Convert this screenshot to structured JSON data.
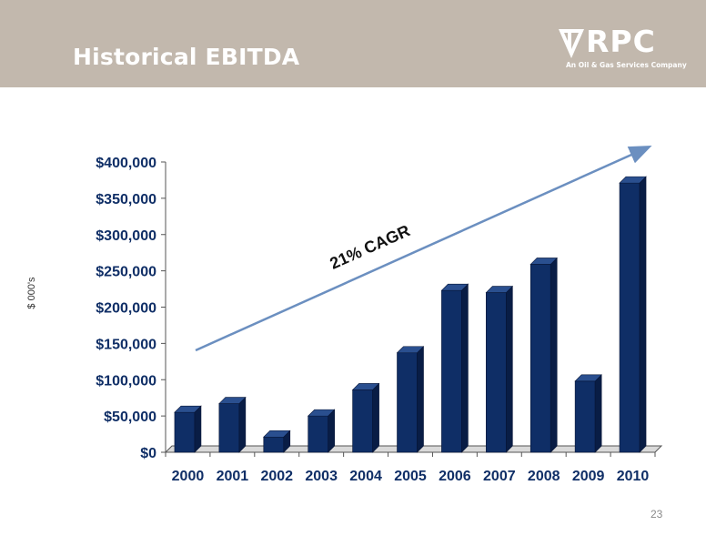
{
  "slide": {
    "title": "Historical EBITDA",
    "page_number": "23",
    "logo": {
      "word": "RPC",
      "tagline": "An Oil & Gas Services Company"
    }
  },
  "colors": {
    "header": "#c2b8ad",
    "bar": "#0f2e66",
    "bar_side": "#091d45",
    "bar_top": "#2a4f8f",
    "arrow": "#6b8fc0"
  },
  "chart_data": {
    "type": "bar",
    "title": "",
    "xlabel": "",
    "ylabel": "$ 000's",
    "categories": [
      "2000",
      "2001",
      "2002",
      "2003",
      "2004",
      "2005",
      "2006",
      "2007",
      "2008",
      "2009",
      "2010"
    ],
    "values": [
      55000,
      67000,
      21000,
      50000,
      86000,
      137000,
      223000,
      220000,
      259000,
      98000,
      371000
    ],
    "ylim": [
      0,
      400000
    ],
    "yticks": [
      "$0",
      "$50,000",
      "$100,000",
      "$150,000",
      "$200,000",
      "$250,000",
      "$300,000",
      "$350,000",
      "$400,000"
    ],
    "ytick_values": [
      0,
      50000,
      100000,
      150000,
      200000,
      250000,
      300000,
      350000,
      400000
    ],
    "annotation": "21% CAGR",
    "grid": false,
    "legend": "none"
  }
}
